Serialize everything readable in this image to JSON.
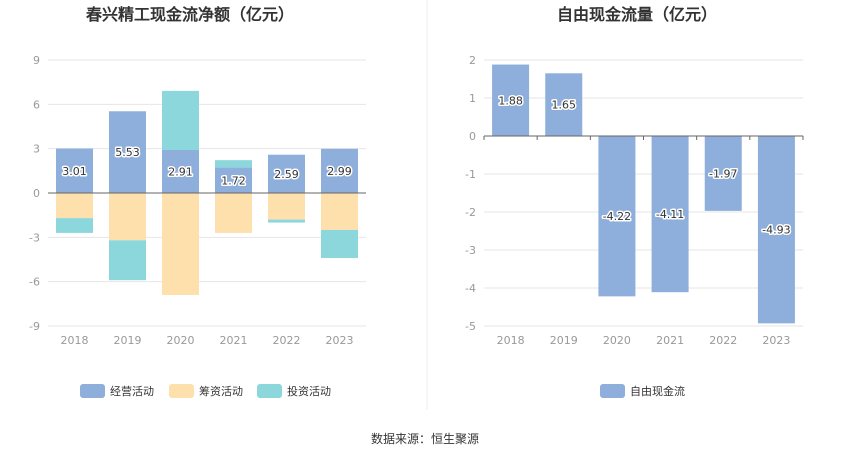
{
  "source_note": "数据来源：恒生聚源",
  "chart_data": [
    {
      "type": "bar",
      "stacked": true,
      "title": "春兴精工现金流净额（亿元）",
      "categories": [
        "2018",
        "2019",
        "2020",
        "2021",
        "2022",
        "2023"
      ],
      "ylim": [
        -9,
        9
      ],
      "yticks": [
        9,
        6,
        3,
        0,
        -3,
        -6,
        -9
      ],
      "grid": true,
      "legend_position": "bottom",
      "series": [
        {
          "name": "经营活动",
          "color": "#8eaedb",
          "values": [
            3.01,
            5.53,
            2.91,
            1.72,
            2.59,
            2.99
          ]
        },
        {
          "name": "筹资活动",
          "color": "#fde0ac",
          "values": [
            -1.7,
            -3.2,
            -6.9,
            -2.7,
            -1.8,
            -2.5
          ]
        },
        {
          "name": "投资活动",
          "color": "#8bd7dc",
          "values": [
            -1.0,
            -2.7,
            4.0,
            0.5,
            -0.2,
            -1.9
          ]
        }
      ],
      "data_labels": [
        "3.01",
        "5.53",
        "2.91",
        "1.72",
        "2.59",
        "2.99"
      ]
    },
    {
      "type": "bar",
      "title": "自由现金流量（亿元）",
      "categories": [
        "2018",
        "2019",
        "2020",
        "2021",
        "2022",
        "2023"
      ],
      "ylim": [
        -5,
        2
      ],
      "yticks": [
        2,
        1,
        0,
        -1,
        -2,
        -3,
        -4,
        -5
      ],
      "grid": true,
      "legend_position": "bottom",
      "series": [
        {
          "name": "自由现金流",
          "color": "#8eaedb",
          "values": [
            1.88,
            1.65,
            -4.22,
            -4.11,
            -1.97,
            -4.93
          ]
        }
      ],
      "data_labels": [
        "1.88",
        "1.65",
        "-4.22",
        "-4.11",
        "-1.97",
        "-4.93"
      ]
    }
  ]
}
